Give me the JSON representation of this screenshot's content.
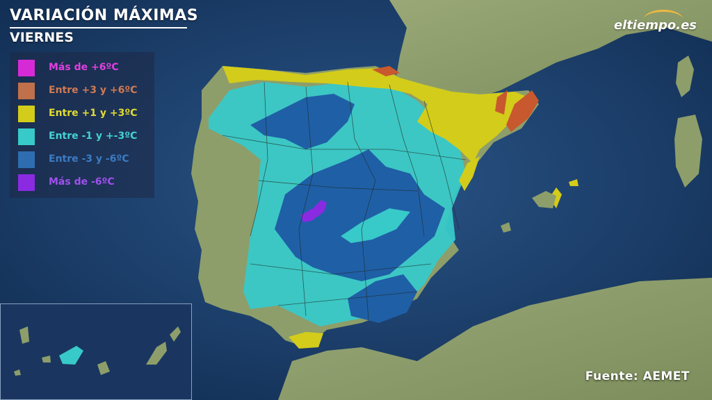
{
  "header": {
    "title": "VARIACIÓN MÁXIMAS",
    "subtitle": "VIERNES"
  },
  "legend": {
    "items": [
      {
        "label": "Más de +6ºC",
        "color": "#d62ad6"
      },
      {
        "label": "Entre +3 y +6ºC",
        "color": "#c0704a"
      },
      {
        "label": "Entre +1 y +3ºC",
        "color": "#d3cc1a"
      },
      {
        "label": "Entre -1 y +-3ºC",
        "color": "#38c9c9"
      },
      {
        "label": "Entre -3 y -6ºC",
        "color": "#2e6db0"
      },
      {
        "label": "Más de -6ºC",
        "color": "#8a2be2"
      }
    ]
  },
  "brand": {
    "logo": "eltiempo.es"
  },
  "footer": {
    "source": "Fuente: AEMET"
  },
  "colors": {
    "sea": "#1c3d68",
    "land": "#8d9e6a",
    "cyan_zone": "#38c9c9",
    "blue_zone": "#1f5fa6",
    "yellow_zone": "#d3cc1a",
    "orange_zone": "#c8582e",
    "purple_zone": "#8a2be2"
  }
}
